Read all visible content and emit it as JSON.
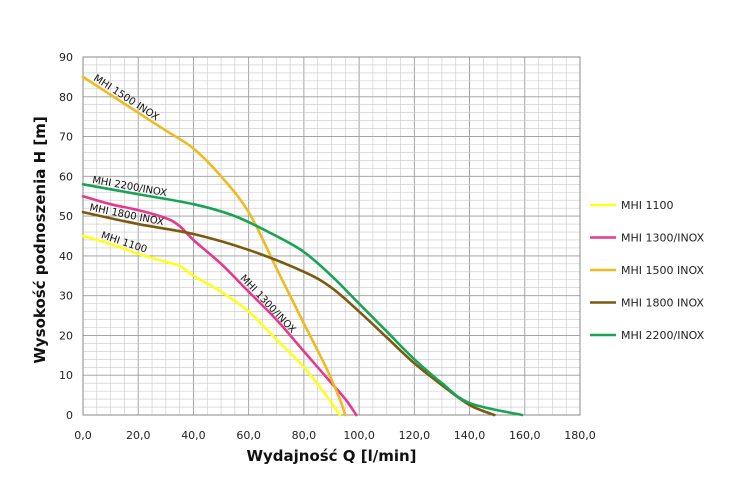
{
  "chart_data": {
    "type": "line",
    "title": "",
    "xlabel": "Wydajność Q [l/min]",
    "ylabel": "Wysokość podnoszenia H [m]",
    "xlim": [
      0,
      180
    ],
    "ylim": [
      0,
      90
    ],
    "x_major_ticks": [
      "0,0",
      "20,0",
      "40,0",
      "60,0",
      "80,0",
      "100,0",
      "120,0",
      "140,0",
      "160,0",
      "180,0"
    ],
    "y_major_ticks": [
      "0",
      "10",
      "20",
      "30",
      "40",
      "50",
      "60",
      "70",
      "80",
      "90"
    ],
    "grid": true,
    "legend_position": "right",
    "series": [
      {
        "name": "MHI 1100",
        "color": "#ffff1e",
        "label": "MHI 1100",
        "points": [
          [
            0,
            45
          ],
          [
            10,
            43
          ],
          [
            20,
            40.5
          ],
          [
            30,
            38.5
          ],
          [
            35,
            37.5
          ],
          [
            40,
            35
          ],
          [
            50,
            31
          ],
          [
            60,
            26
          ],
          [
            70,
            19
          ],
          [
            80,
            12
          ],
          [
            88,
            5
          ],
          [
            93,
            0
          ]
        ]
      },
      {
        "name": "MHI 1300/INOX",
        "color": "#e8388e",
        "label": "MHI 1300/INOX",
        "points": [
          [
            0,
            55
          ],
          [
            10,
            53
          ],
          [
            20,
            51.5
          ],
          [
            30,
            49.5
          ],
          [
            35,
            47.5
          ],
          [
            40,
            44
          ],
          [
            50,
            38
          ],
          [
            60,
            31
          ],
          [
            70,
            24
          ],
          [
            80,
            16
          ],
          [
            90,
            8
          ],
          [
            95,
            4
          ],
          [
            99,
            0
          ]
        ]
      },
      {
        "name": "MHI 1500 INOX",
        "color": "#f0bb20",
        "label": "MHI 1500 INOX",
        "points": [
          [
            0,
            85
          ],
          [
            10,
            80.5
          ],
          [
            20,
            76
          ],
          [
            30,
            71.5
          ],
          [
            40,
            67
          ],
          [
            50,
            60
          ],
          [
            60,
            51
          ],
          [
            70,
            37
          ],
          [
            80,
            23
          ],
          [
            88,
            12
          ],
          [
            93,
            4
          ],
          [
            95,
            0
          ]
        ]
      },
      {
        "name": "MHI 1800 INOX",
        "color": "#7a5a0e",
        "label": "MHI 1800 INOX",
        "points": [
          [
            0,
            51
          ],
          [
            20,
            48
          ],
          [
            40,
            45.5
          ],
          [
            60,
            41.5
          ],
          [
            80,
            36
          ],
          [
            90,
            32
          ],
          [
            100,
            26
          ],
          [
            110,
            19.5
          ],
          [
            120,
            13
          ],
          [
            130,
            7.5
          ],
          [
            140,
            2.5
          ],
          [
            149,
            0
          ]
        ]
      },
      {
        "name": "MHI 2200/INOX",
        "color": "#17a455",
        "label": "MHI 2200/INOX",
        "points": [
          [
            0,
            58
          ],
          [
            20,
            55.5
          ],
          [
            40,
            53
          ],
          [
            55,
            50
          ],
          [
            70,
            45
          ],
          [
            80,
            41
          ],
          [
            90,
            35
          ],
          [
            100,
            28
          ],
          [
            110,
            21
          ],
          [
            120,
            14
          ],
          [
            130,
            8
          ],
          [
            140,
            3
          ],
          [
            159,
            0
          ]
        ]
      }
    ]
  }
}
